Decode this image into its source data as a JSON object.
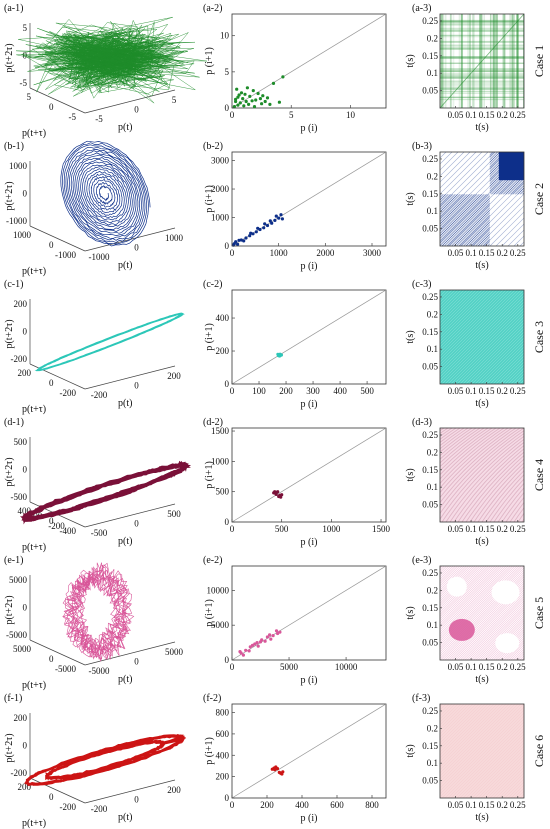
{
  "figure": {
    "rows": [
      {
        "case_label": "Case 1",
        "color": "#1e8c2a",
        "col1": {
          "label": "(a-1)",
          "zlabel": "p(t+2τ)",
          "ylabel": "p(t+τ)",
          "xlabel": "p(t)",
          "zticks": [
            "5",
            "0",
            "-5"
          ],
          "yticks": [
            "5",
            "0",
            "-5"
          ],
          "xticks": [
            "-5",
            "0",
            "5"
          ]
        },
        "col2": {
          "label": "(a-2)",
          "xlabel": "p (i)",
          "ylabel": "p (i+1)",
          "xticks": [
            "0",
            "5",
            "10"
          ],
          "yticks": [
            "0",
            "5",
            "10"
          ]
        },
        "col3": {
          "label": "(a-3)",
          "xlabel": "t(s)",
          "ylabel": "t(s)",
          "xticks": [
            "0.05",
            "0.1",
            "0.15",
            "0.2",
            "0.25"
          ],
          "yticks": [
            "0.25",
            "0.2",
            "0.15",
            "0.1",
            "0.05"
          ]
        }
      },
      {
        "case_label": "Case 2",
        "color": "#0d2f8a",
        "col1": {
          "label": "(b-1)",
          "zlabel": "p(t+2τ)",
          "ylabel": "p(t+τ)",
          "xlabel": "p(t)",
          "zticks": [
            "1000",
            "0",
            "-1000"
          ],
          "yticks": [
            "1000",
            "0",
            "-1000"
          ],
          "xticks": [
            "-1000",
            "0",
            "1000"
          ]
        },
        "col2": {
          "label": "(b-2)",
          "xlabel": "p (i)",
          "ylabel": "p (i+1)",
          "xticks": [
            "0",
            "1000",
            "2000",
            "3000"
          ],
          "yticks": [
            "0",
            "1000",
            "2000",
            "3000"
          ]
        },
        "col3": {
          "label": "(b-3)",
          "xlabel": "t(s)",
          "ylabel": "t(s)",
          "xticks": [
            "0.05",
            "0.1",
            "0.15",
            "0.2",
            "0.25"
          ],
          "yticks": [
            "0.25",
            "0.2",
            "0.15",
            "0.1",
            "0.05"
          ]
        }
      },
      {
        "case_label": "Case 3",
        "color": "#2cc7b8",
        "col1": {
          "label": "(c-1)",
          "zlabel": "p(t+2τ)",
          "ylabel": "p(t+τ)",
          "xlabel": "p(t)",
          "zticks": [
            "200",
            "0",
            "-200"
          ],
          "yticks": [
            "200",
            "0",
            "-200"
          ],
          "xticks": [
            "-200",
            "0",
            "200"
          ]
        },
        "col2": {
          "label": "(c-2)",
          "xlabel": "p (i)",
          "ylabel": "p (i+1)",
          "xticks": [
            "0",
            "100",
            "200",
            "300",
            "400",
            "500"
          ],
          "yticks": [
            "0",
            "200",
            "400"
          ]
        },
        "col3": {
          "label": "(c-3)",
          "xlabel": "t(s)",
          "ylabel": "t(s)",
          "xticks": [
            "0.05",
            "0.1",
            "0.15",
            "0.2",
            "0.25"
          ],
          "yticks": [
            "0.25",
            "0.2",
            "0.15",
            "0.1",
            "0.05"
          ]
        }
      },
      {
        "case_label": "Case 4",
        "color": "#7a1038",
        "col1": {
          "label": "(d-1)",
          "zlabel": "p(t+2τ)",
          "ylabel": "p(t+τ)",
          "xlabel": "p(t)",
          "zticks": [
            "500",
            "0",
            "-500"
          ],
          "yticks": [
            "400",
            "200",
            "0",
            "-200",
            "-400"
          ],
          "xticks": [
            "-500",
            "0",
            "500"
          ]
        },
        "col2": {
          "label": "(d-2)",
          "xlabel": "p (i)",
          "ylabel": "p (i+1)",
          "xticks": [
            "0",
            "500",
            "1000",
            "1500"
          ],
          "yticks": [
            "0",
            "500",
            "1000",
            "1500"
          ]
        },
        "col3": {
          "label": "(d-3)",
          "xlabel": "t(s)",
          "ylabel": "t(s)",
          "xticks": [
            "0.05",
            "0.1",
            "0.15",
            "0.2",
            "0.25"
          ],
          "yticks": [
            "0.25",
            "0.2",
            "0.15",
            "0.1",
            "0.05"
          ]
        }
      },
      {
        "case_label": "Case 5",
        "color": "#d9579a",
        "col1": {
          "label": "(e-1)",
          "zlabel": "p(t+2τ)",
          "ylabel": "p(t+τ)",
          "xlabel": "p(t)",
          "zticks": [
            "5000",
            "0",
            "-5000"
          ],
          "yticks": [
            "5000",
            "0",
            "-5000"
          ],
          "xticks": [
            "-5000",
            "0",
            "5000"
          ]
        },
        "col2": {
          "label": "(e-2)",
          "xlabel": "p (i)",
          "ylabel": "p (i+1)",
          "xticks": [
            "0",
            "5000",
            "10000"
          ],
          "yticks": [
            "0",
            "5000",
            "10000"
          ]
        },
        "col3": {
          "label": "(e-3)",
          "xlabel": "t(s)",
          "ylabel": "t(s)",
          "xticks": [
            "0.05",
            "0.1",
            "0.15",
            "0.2",
            "0.25"
          ],
          "yticks": [
            "0.25",
            "0.2",
            "0.15",
            "0.1",
            "0.05"
          ]
        }
      },
      {
        "case_label": "Case 6",
        "color": "#cc1414",
        "col1": {
          "label": "(f-1)",
          "zlabel": "p(t+2τ)",
          "ylabel": "p(t+τ)",
          "xlabel": "p(t)",
          "zticks": [
            "200",
            "0",
            "-200"
          ],
          "yticks": [
            "200",
            "0",
            "-200"
          ],
          "xticks": [
            "-200",
            "0",
            "200"
          ]
        },
        "col2": {
          "label": "(f-2)",
          "xlabel": "p (i)",
          "ylabel": "p (i+1)",
          "xticks": [
            "0",
            "200",
            "400",
            "600",
            "800"
          ],
          "yticks": [
            "0",
            "200",
            "400",
            "600",
            "800"
          ]
        },
        "col3": {
          "label": "(f-3)",
          "xlabel": "t(s)",
          "ylabel": "t(s)",
          "xticks": [
            "0.05",
            "0.1",
            "0.15",
            "0.2",
            "0.25"
          ],
          "yticks": [
            "0.25",
            "0.2",
            "0.15",
            "0.1",
            "0.05"
          ]
        }
      }
    ]
  },
  "chart_data": [
    {
      "type": "line3d",
      "panel": "(a-1)",
      "description_units": "p",
      "xlim": [
        -5,
        5
      ],
      "ylim": [
        -5,
        5
      ],
      "zlim": [
        -5,
        5
      ],
      "shape": "noise-cloud"
    },
    {
      "type": "scatter",
      "panel": "(a-2)",
      "xlim": [
        0,
        13
      ],
      "ylim": [
        0,
        13
      ],
      "diagonal": true,
      "points": [
        [
          0.3,
          1.2
        ],
        [
          0.5,
          0.4
        ],
        [
          0.8,
          2.1
        ],
        [
          1.2,
          0.9
        ],
        [
          1.5,
          1.6
        ],
        [
          0.2,
          0.2
        ],
        [
          2.0,
          1.1
        ],
        [
          2.5,
          0.6
        ],
        [
          1.8,
          2.4
        ],
        [
          0.6,
          1.8
        ],
        [
          1.0,
          0.3
        ],
        [
          3.0,
          1.4
        ],
        [
          2.2,
          2.0
        ],
        [
          0.9,
          1.3
        ],
        [
          1.4,
          0.5
        ],
        [
          0.4,
          2.6
        ],
        [
          2.8,
          0.9
        ],
        [
          1.7,
          1.0
        ],
        [
          3.5,
          3.4
        ],
        [
          4.3,
          4.3
        ],
        [
          4.0,
          0.8
        ],
        [
          0.7,
          0.7
        ],
        [
          1.1,
          1.9
        ],
        [
          2.6,
          1.7
        ],
        [
          1.9,
          0.2
        ],
        [
          0.3,
          0.9
        ],
        [
          3.2,
          0.5
        ],
        [
          1.3,
          2.8
        ],
        [
          2.4,
          1.3
        ],
        [
          0.5,
          1.5
        ]
      ]
    },
    {
      "type": "heatmap",
      "panel": "(a-3)",
      "xlim": [
        0,
        0.27
      ],
      "ylim": [
        0,
        0.27
      ],
      "pattern": "sparse-grid"
    },
    {
      "type": "line3d",
      "panel": "(b-1)",
      "xlim": [
        -1500,
        1500
      ],
      "ylim": [
        -1500,
        1500
      ],
      "zlim": [
        -1500,
        1500
      ],
      "shape": "nested-spiral"
    },
    {
      "type": "scatter",
      "panel": "(b-2)",
      "xlim": [
        0,
        3300
      ],
      "ylim": [
        0,
        3300
      ],
      "diagonal": true,
      "points": [
        [
          50,
          80
        ],
        [
          120,
          60
        ],
        [
          200,
          210
        ],
        [
          300,
          280
        ],
        [
          380,
          360
        ],
        [
          450,
          430
        ],
        [
          520,
          500
        ],
        [
          600,
          580
        ],
        [
          680,
          640
        ],
        [
          760,
          720
        ],
        [
          850,
          800
        ],
        [
          920,
          900
        ],
        [
          1000,
          980
        ],
        [
          1050,
          1100
        ],
        [
          950,
          1050
        ],
        [
          1080,
          950
        ],
        [
          700,
          780
        ],
        [
          400,
          450
        ],
        [
          150,
          200
        ],
        [
          30,
          30
        ],
        [
          80,
          150
        ],
        [
          250,
          180
        ],
        [
          550,
          620
        ],
        [
          820,
          880
        ]
      ]
    },
    {
      "type": "heatmap",
      "panel": "(b-3)",
      "xlim": [
        0,
        0.27
      ],
      "ylim": [
        0,
        0.27
      ],
      "pattern": "block-recurrence",
      "block_start": 0.16
    },
    {
      "type": "line3d",
      "panel": "(c-1)",
      "xlim": [
        -250,
        250
      ],
      "ylim": [
        -250,
        250
      ],
      "zlim": [
        -250,
        250
      ],
      "shape": "limit-cycle"
    },
    {
      "type": "scatter",
      "panel": "(c-2)",
      "xlim": [
        0,
        570
      ],
      "ylim": [
        0,
        570
      ],
      "diagonal": true,
      "points": [
        [
          172,
          172
        ],
        [
          175,
          178
        ],
        [
          180,
          174
        ],
        [
          178,
          181
        ],
        [
          183,
          176
        ],
        [
          170,
          180
        ],
        [
          176,
          170
        ]
      ]
    },
    {
      "type": "heatmap",
      "panel": "(c-3)",
      "xlim": [
        0,
        0.27
      ],
      "ylim": [
        0,
        0.27
      ],
      "pattern": "uniform"
    },
    {
      "type": "line3d",
      "panel": "(d-1)",
      "xlim": [
        -600,
        600
      ],
      "ylim": [
        -500,
        500
      ],
      "zlim": [
        -600,
        600
      ],
      "shape": "thick-loop"
    },
    {
      "type": "scatter",
      "panel": "(d-2)",
      "xlim": [
        0,
        1550
      ],
      "ylim": [
        0,
        1550
      ],
      "diagonal": true,
      "points": [
        [
          420,
          480
        ],
        [
          430,
          500
        ],
        [
          440,
          470
        ],
        [
          450,
          490
        ],
        [
          470,
          420
        ],
        [
          480,
          440
        ],
        [
          490,
          410
        ],
        [
          500,
          450
        ],
        [
          460,
          500
        ],
        [
          445,
          455
        ]
      ]
    },
    {
      "type": "heatmap",
      "panel": "(d-3)",
      "xlim": [
        0,
        0.27
      ],
      "ylim": [
        0,
        0.27
      ],
      "pattern": "diagonal-bands"
    },
    {
      "type": "line3d",
      "panel": "(e-1)",
      "xlim": [
        -6000,
        6000
      ],
      "ylim": [
        -6000,
        6000
      ],
      "zlim": [
        -6000,
        6000
      ],
      "shape": "tangled-loop"
    },
    {
      "type": "scatter",
      "panel": "(e-2)",
      "xlim": [
        0,
        13500
      ],
      "ylim": [
        0,
        13500
      ],
      "diagonal": true,
      "points": [
        [
          800,
          1000
        ],
        [
          1200,
          1400
        ],
        [
          1500,
          1300
        ],
        [
          1800,
          2100
        ],
        [
          2000,
          2300
        ],
        [
          2300,
          2000
        ],
        [
          2600,
          2900
        ],
        [
          2900,
          2700
        ],
        [
          3100,
          3300
        ],
        [
          3300,
          3600
        ],
        [
          3600,
          3500
        ],
        [
          3900,
          4200
        ],
        [
          4200,
          4000
        ],
        [
          1000,
          700
        ],
        [
          1600,
          1900
        ],
        [
          2500,
          2600
        ],
        [
          3400,
          3000
        ],
        [
          4000,
          3800
        ],
        [
          700,
          1200
        ],
        [
          2200,
          2500
        ]
      ]
    },
    {
      "type": "heatmap",
      "panel": "(e-3)",
      "xlim": [
        0,
        0.27
      ],
      "ylim": [
        0,
        0.27
      ],
      "pattern": "central-blob"
    },
    {
      "type": "line3d",
      "panel": "(f-1)",
      "xlim": [
        -300,
        300
      ],
      "ylim": [
        -300,
        300
      ],
      "zlim": [
        -300,
        300
      ],
      "shape": "double-loop"
    },
    {
      "type": "scatter",
      "panel": "(f-2)",
      "xlim": [
        0,
        880
      ],
      "ylim": [
        0,
        880
      ],
      "diagonal": true,
      "points": [
        [
          230,
          270
        ],
        [
          240,
          280
        ],
        [
          250,
          290
        ],
        [
          260,
          275
        ],
        [
          270,
          240
        ],
        [
          280,
          230
        ],
        [
          285,
          225
        ],
        [
          290,
          245
        ],
        [
          245,
          265
        ],
        [
          275,
          235
        ]
      ]
    },
    {
      "type": "heatmap",
      "panel": "(f-3)",
      "xlim": [
        0,
        0.27
      ],
      "ylim": [
        0,
        0.27
      ],
      "pattern": "faint-uniform"
    }
  ]
}
